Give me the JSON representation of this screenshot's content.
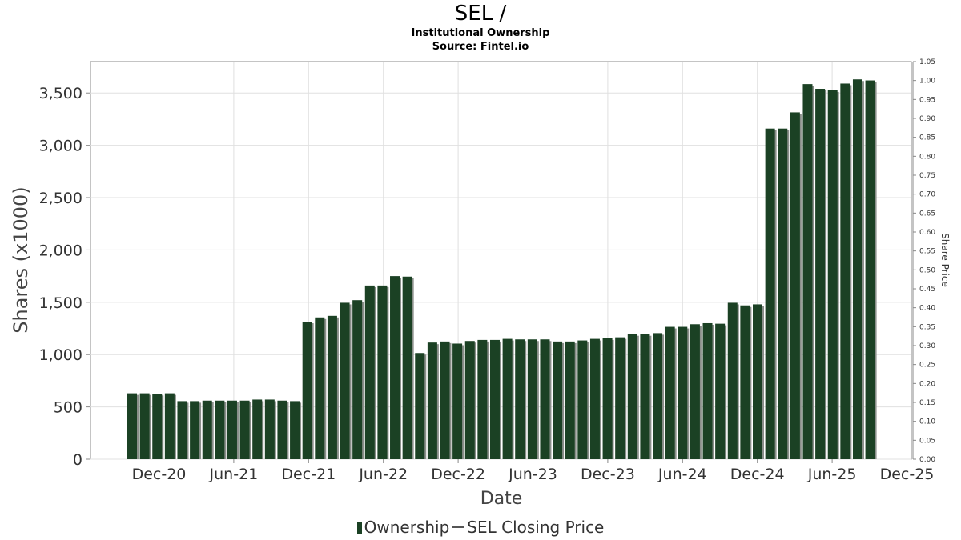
{
  "chart_data": {
    "type": "bar",
    "title": "SEL /",
    "subtitle": "Institutional Ownership",
    "source": "Source: Fintel.io",
    "xlabel": "Date",
    "ylabel": "Shares (x1000)",
    "y2label": "Share Price",
    "ylim": [
      0,
      3800
    ],
    "y2lim": [
      0,
      1.05
    ],
    "yticks": [
      "0",
      "500",
      "1,000",
      "1,500",
      "2,000",
      "2,500",
      "3,000",
      "3,500"
    ],
    "y2ticks": [
      "0.00",
      "0.05",
      "0.10",
      "0.15",
      "0.20",
      "0.25",
      "0.30",
      "0.35",
      "0.40",
      "0.45",
      "0.50",
      "0.55",
      "0.60",
      "0.65",
      "0.70",
      "0.75",
      "0.80",
      "0.85",
      "0.90",
      "0.95",
      "1.00",
      "1.05"
    ],
    "xticks": [
      "Dec-20",
      "Jun-21",
      "Dec-21",
      "Jun-22",
      "Dec-22",
      "Jun-23",
      "Dec-23",
      "Jun-24",
      "Dec-24",
      "Jun-25",
      "Dec-25"
    ],
    "grid": true,
    "legend_position": "bottom",
    "series": [
      {
        "name": "Ownership",
        "color": "#1b4124",
        "values": [
          630,
          630,
          625,
          630,
          555,
          555,
          560,
          560,
          560,
          560,
          570,
          570,
          560,
          555,
          1315,
          1355,
          1370,
          1495,
          1520,
          1660,
          1660,
          1750,
          1745,
          1015,
          1115,
          1125,
          1105,
          1130,
          1140,
          1140,
          1150,
          1145,
          1145,
          1145,
          1125,
          1125,
          1135,
          1150,
          1155,
          1165,
          1195,
          1195,
          1205,
          1265,
          1265,
          1290,
          1300,
          1295,
          1495,
          1470,
          1480,
          3160,
          3160,
          3315,
          3585,
          3540,
          3525,
          3590,
          3630,
          3620
        ]
      },
      {
        "name": "SEL Closing Price",
        "color": "#555555",
        "values": []
      }
    ]
  }
}
